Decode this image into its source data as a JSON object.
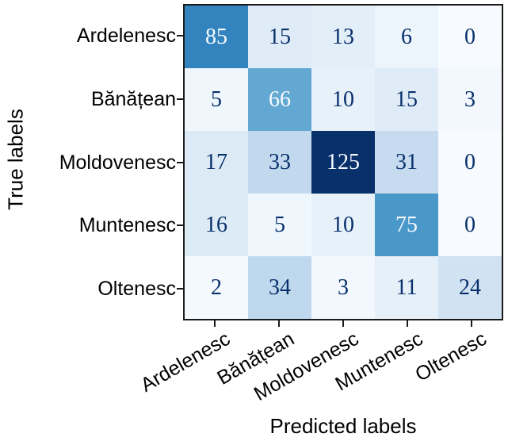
{
  "chart_data": {
    "type": "heatmap",
    "subtype": "confusion-matrix",
    "xlabel": "Predicted labels",
    "ylabel": "True labels",
    "categories": [
      "Ardelenesc",
      "Bănățean",
      "Moldovenesc",
      "Muntenesc",
      "Oltenesc"
    ],
    "rows": [
      [
        85,
        15,
        13,
        6,
        0
      ],
      [
        5,
        66,
        10,
        15,
        3
      ],
      [
        17,
        33,
        125,
        31,
        0
      ],
      [
        16,
        5,
        10,
        75,
        0
      ],
      [
        2,
        34,
        3,
        11,
        24
      ]
    ],
    "vmin": 0,
    "vmax": 125,
    "colormap": "Blues",
    "colormap_anchors": [
      "#f7fbff",
      "#deebf7",
      "#c6dbef",
      "#9ecae1",
      "#6baed6",
      "#4292c6",
      "#2171b5",
      "#08519c",
      "#08306b"
    ],
    "cell_text_color_dark": "#08306b",
    "cell_text_color_light": "#f7fbff",
    "cell_text_threshold": 62.5,
    "axis_color": "#1a1a1a",
    "x_tick_rotation_deg": 30,
    "grid": false,
    "legend": "none"
  }
}
